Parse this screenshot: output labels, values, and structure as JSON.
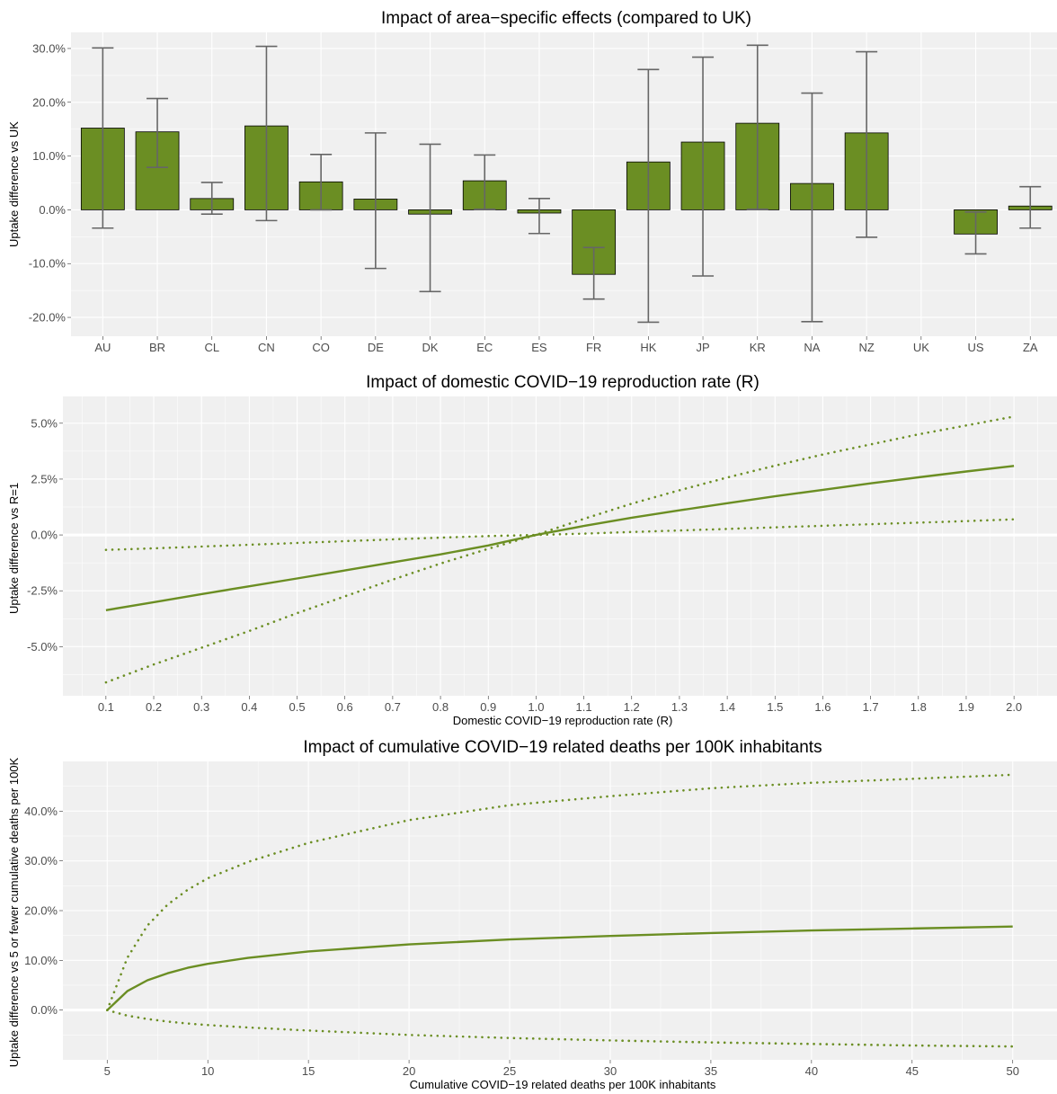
{
  "colors": {
    "bar_fill": "#6b8e23",
    "bar_stroke": "#000000",
    "line": "#6b8e23",
    "errorbar": "#666666",
    "panel": "#f0f0f0",
    "grid": "#ffffff"
  },
  "chart_data": [
    {
      "type": "bar",
      "title": "Impact of area−specific effects (compared to UK)",
      "xlabel": "",
      "ylabel": "Uptake difference vs UK",
      "ylim": [
        -23.5,
        33
      ],
      "yticks": [
        -20,
        -10,
        0,
        10,
        20,
        30
      ],
      "ytick_labels": [
        "-20.0%",
        "-10.0%",
        "0.0%",
        "10.0%",
        "20.0%",
        "30.0%"
      ],
      "grid": true,
      "categories": [
        "AU",
        "BR",
        "CL",
        "CN",
        "CO",
        "DE",
        "DK",
        "EC",
        "ES",
        "FR",
        "HK",
        "JP",
        "KR",
        "NA",
        "NZ",
        "UK",
        "US",
        "ZA"
      ],
      "values": [
        15.2,
        14.5,
        2.1,
        15.6,
        5.2,
        2.0,
        -0.8,
        5.4,
        -0.6,
        -12.0,
        8.9,
        12.6,
        16.1,
        4.9,
        14.3,
        null,
        -4.5,
        0.7
      ],
      "error_low": [
        -3.4,
        7.9,
        -0.8,
        -2.0,
        0.0,
        -10.9,
        -15.2,
        0.1,
        -4.4,
        -7.0,
        -20.9,
        -12.3,
        0.1,
        -20.8,
        -5.1,
        null,
        -8.2,
        -3.4
      ],
      "error_high": [
        30.1,
        20.7,
        5.1,
        30.4,
        10.3,
        14.3,
        12.2,
        10.2,
        2.1,
        -16.6,
        26.1,
        28.4,
        30.6,
        21.7,
        29.4,
        null,
        -0.4,
        4.3
      ]
    },
    {
      "type": "line",
      "title": "Impact of domestic COVID−19 reproduction rate (R)",
      "xlabel": "Domestic COVID−19 reproduction rate (R)",
      "ylabel": "Uptake difference vs R=1",
      "xlim": [
        0.01,
        2.09
      ],
      "ylim": [
        -7.2,
        6.2
      ],
      "xticks": [
        0.1,
        0.2,
        0.3,
        0.4,
        0.5,
        0.6,
        0.7,
        0.8,
        0.9,
        1.0,
        1.1,
        1.2,
        1.3,
        1.4,
        1.5,
        1.6,
        1.7,
        1.8,
        1.9,
        2.0
      ],
      "xtick_labels": [
        "0.1",
        "0.2",
        "0.3",
        "0.4",
        "0.5",
        "0.6",
        "0.7",
        "0.8",
        "0.9",
        "1.0",
        "1.1",
        "1.2",
        "1.3",
        "1.4",
        "1.5",
        "1.6",
        "1.7",
        "1.8",
        "1.9",
        "2.0"
      ],
      "yticks": [
        -5,
        -2.5,
        0,
        2.5,
        5
      ],
      "ytick_labels": [
        "-5.0%",
        "-2.5%",
        "0.0%",
        "2.5%",
        "5.0%"
      ],
      "grid": true,
      "x": [
        0.1,
        0.2,
        0.3,
        0.4,
        0.5,
        0.6,
        0.7,
        0.8,
        0.9,
        1.0,
        1.1,
        1.2,
        1.3,
        1.4,
        1.5,
        1.6,
        1.7,
        1.8,
        1.9,
        2.0
      ],
      "y": [
        -3.37,
        -3.01,
        -2.65,
        -2.3,
        -1.95,
        -1.59,
        -1.23,
        -0.87,
        -0.47,
        0.0,
        0.4,
        0.77,
        1.1,
        1.42,
        1.73,
        2.02,
        2.31,
        2.58,
        2.84,
        3.09
      ],
      "lower": [
        -6.6,
        -5.8,
        -5.05,
        -4.3,
        -3.5,
        -2.75,
        -2.0,
        -1.28,
        -0.62,
        0.0,
        0.06,
        0.13,
        0.2,
        0.27,
        0.34,
        0.41,
        0.48,
        0.55,
        0.62,
        0.7
      ],
      "upper": [
        -0.67,
        -0.6,
        -0.52,
        -0.44,
        -0.36,
        -0.28,
        -0.2,
        -0.12,
        -0.05,
        0.0,
        0.72,
        1.4,
        2.0,
        2.57,
        3.1,
        3.6,
        4.05,
        4.5,
        4.9,
        5.3
      ]
    },
    {
      "type": "line",
      "title": "Impact of cumulative COVID−19 related deaths per 100K inhabitants",
      "xlabel": "Cumulative COVID−19 related deaths per 100K inhabitants",
      "ylabel": "Uptake difference vs 5 or fewer cumulative deaths per 100K",
      "xlim": [
        2.8,
        52.2
      ],
      "ylim": [
        -10,
        50
      ],
      "xticks": [
        5,
        10,
        15,
        20,
        25,
        30,
        35,
        40,
        45,
        50
      ],
      "xtick_labels": [
        "5",
        "10",
        "15",
        "20",
        "25",
        "30",
        "35",
        "40",
        "45",
        "50"
      ],
      "yticks": [
        0,
        10,
        20,
        30,
        40
      ],
      "ytick_labels": [
        "0.0%",
        "10.0%",
        "20.0%",
        "30.0%",
        "40.0%"
      ],
      "grid": true,
      "x": [
        5,
        6,
        7,
        8,
        9,
        10,
        12,
        15,
        20,
        25,
        30,
        35,
        40,
        45,
        50
      ],
      "y": [
        0.0,
        3.8,
        6.0,
        7.4,
        8.5,
        9.3,
        10.5,
        11.8,
        13.2,
        14.2,
        14.9,
        15.5,
        16.0,
        16.4,
        16.8
      ],
      "upper": [
        0.0,
        10.5,
        17.0,
        21.2,
        24.2,
        26.5,
        29.8,
        33.6,
        38.2,
        41.2,
        43.0,
        44.6,
        45.7,
        46.5,
        47.3
      ],
      "lower": [
        0.0,
        -1.1,
        -1.8,
        -2.3,
        -2.7,
        -3.0,
        -3.5,
        -4.1,
        -5.0,
        -5.6,
        -6.1,
        -6.5,
        -6.8,
        -7.1,
        -7.3
      ]
    }
  ]
}
